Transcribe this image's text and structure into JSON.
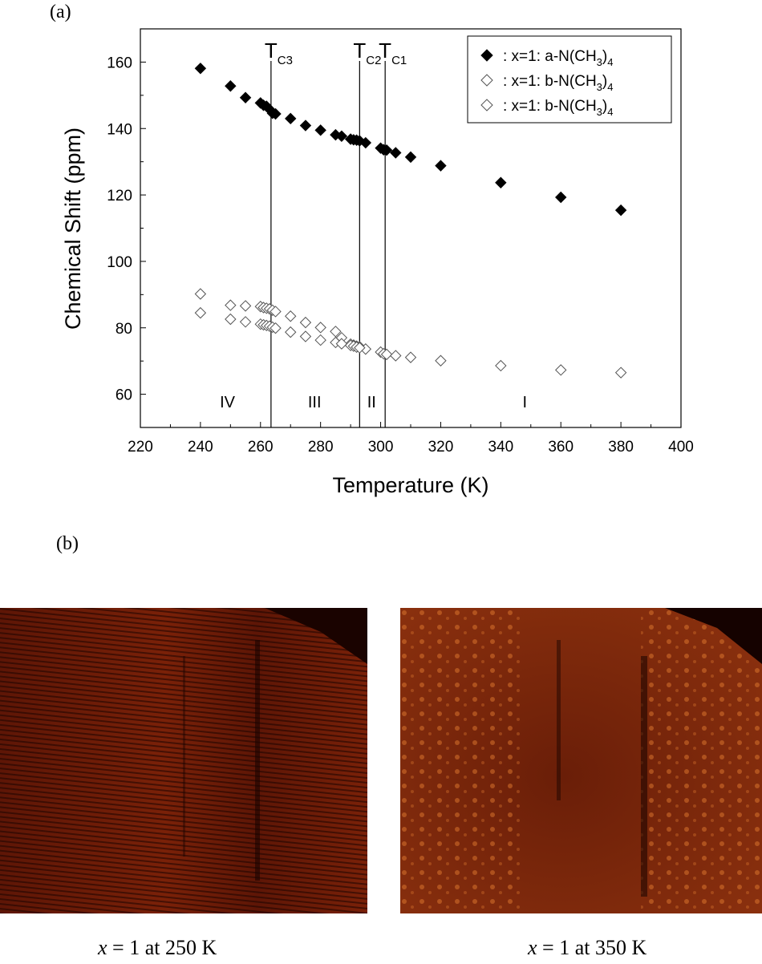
{
  "panel_a_label": "(a)",
  "panel_b_label": "(b)",
  "chart_data": {
    "type": "scatter",
    "xlabel": "Temperature (K)",
    "ylabel": "Chemical Shift (ppm)",
    "xlim": [
      220,
      400
    ],
    "ylim": [
      50,
      170
    ],
    "xticks": [
      220,
      240,
      260,
      280,
      300,
      320,
      340,
      360,
      380,
      400
    ],
    "yticks": [
      60,
      80,
      100,
      120,
      140,
      160
    ],
    "grid": false,
    "legend_position": "top-right",
    "transitions": [
      {
        "label": "T",
        "sub": "C3",
        "x": 263.5
      },
      {
        "label": "T",
        "sub": "C2",
        "x": 293
      },
      {
        "label": "T",
        "sub": "C1",
        "x": 301.5
      }
    ],
    "phase_labels": [
      {
        "text": "IV",
        "x": 249
      },
      {
        "text": "III",
        "x": 278
      },
      {
        "text": "II",
        "x": 297
      },
      {
        "text": "I",
        "x": 348
      }
    ],
    "series": [
      {
        "name": ": x=1: a-N(CH3)4",
        "legend_main": ": x=1: a-N(CH",
        "legend_sub": "3",
        "legend_tail": ")",
        "legend_sub2": "4",
        "marker": "filled-diamond",
        "x": [
          240,
          250,
          255,
          260,
          261,
          262,
          263,
          264,
          265,
          270,
          275,
          280,
          285,
          287,
          290,
          291,
          292,
          293,
          295,
          300,
          301,
          302,
          305,
          310,
          320,
          340,
          360,
          380
        ],
        "y": [
          158.1,
          152.8,
          149.3,
          147.7,
          147.0,
          146.7,
          145.8,
          144.6,
          144.4,
          143.0,
          140.9,
          139.5,
          138.1,
          137.7,
          136.8,
          136.6,
          136.5,
          136.3,
          135.7,
          134.1,
          133.6,
          133.5,
          132.7,
          131.4,
          128.8,
          123.7,
          119.3,
          115.4
        ]
      },
      {
        "name": ": x=1: b-N(CH3)4",
        "legend_main": ": x=1: b-N(CH",
        "legend_sub": "3",
        "legend_tail": ")",
        "legend_sub2": "4",
        "marker": "open-diamond",
        "x": [
          240,
          250,
          255,
          260,
          261,
          262,
          263,
          264,
          265,
          270,
          275,
          280,
          285,
          287,
          290,
          291,
          292,
          293,
          295,
          300,
          301,
          302,
          305,
          310,
          320,
          340,
          360,
          380
        ],
        "y": [
          90.2,
          86.8,
          86.6,
          86.4,
          86.1,
          85.9,
          85.7,
          85.3,
          84.9,
          83.5,
          81.6,
          80.1,
          78.9,
          77.0,
          75.1,
          74.8,
          74.5,
          74.3,
          73.6,
          72.7,
          72.2,
          72.0,
          71.6,
          71.1,
          70.1,
          68.6,
          67.3,
          66.5
        ]
      },
      {
        "name": ": x=1: b-N(CH3)4",
        "legend_main": ": x=1: b-N(CH",
        "legend_sub": "3",
        "legend_tail": ")",
        "legend_sub2": "4",
        "marker": "open-diamond",
        "x": [
          240,
          250,
          255,
          260,
          261,
          262,
          263,
          264,
          265,
          270,
          275,
          280,
          285,
          287,
          290,
          291,
          292,
          293
        ],
        "y": [
          84.5,
          82.6,
          81.8,
          81.1,
          80.9,
          80.7,
          80.5,
          80.2,
          79.9,
          78.7,
          77.4,
          76.3,
          75.6,
          75.2,
          74.7,
          74.5,
          74.2,
          74.0
        ]
      }
    ]
  },
  "images": [
    {
      "caption_var": "x",
      "caption_rest": " = 1 at 250 K",
      "colors": {
        "base": "#5e1606",
        "dark": "#1a0300",
        "stripe": "#7a2108",
        "bright": "#c0401a"
      }
    },
    {
      "caption_var": "x",
      "caption_rest": " = 1 at 350 K",
      "colors": {
        "base": "#6a1e08",
        "dark": "#150200",
        "stripe": "#8a300e",
        "bright": "#e07a30"
      }
    }
  ]
}
